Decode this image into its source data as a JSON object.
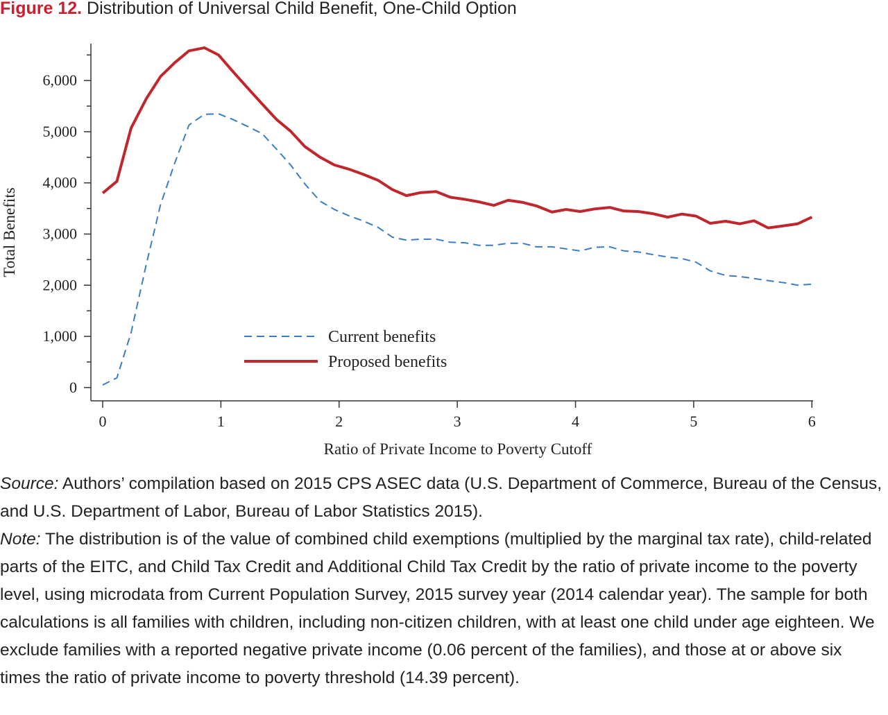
{
  "chart_data": {
    "type": "line",
    "figure_label": "Figure 12.",
    "title": "Distribution of Universal Child Benefit, One-Child Option",
    "xlabel": "Ratio of Private Income to Poverty Cutoff",
    "ylabel": "Total Benefits",
    "x": [
      0,
      0.12,
      0.24,
      0.37,
      0.49,
      0.61,
      0.73,
      0.86,
      0.98,
      1.1,
      1.22,
      1.35,
      1.47,
      1.59,
      1.71,
      1.84,
      1.96,
      2.08,
      2.2,
      2.33,
      2.45,
      2.57,
      2.69,
      2.82,
      2.94,
      3.06,
      3.18,
      3.31,
      3.43,
      3.55,
      3.67,
      3.8,
      3.92,
      4.04,
      4.16,
      4.29,
      4.41,
      4.53,
      4.65,
      4.78,
      4.9,
      5.02,
      5.14,
      5.27,
      5.39,
      5.51,
      5.63,
      5.76,
      5.88,
      6
    ],
    "series": [
      {
        "name": "Current benefits",
        "color": "#3a7dc4",
        "dashed": true,
        "values": [
          50,
          190,
          1070,
          2420,
          3580,
          4390,
          5130,
          5340,
          5350,
          5240,
          5110,
          4960,
          4660,
          4350,
          3980,
          3640,
          3480,
          3360,
          3260,
          3130,
          2940,
          2880,
          2900,
          2900,
          2840,
          2830,
          2780,
          2780,
          2820,
          2820,
          2750,
          2750,
          2710,
          2670,
          2740,
          2750,
          2670,
          2650,
          2600,
          2550,
          2520,
          2450,
          2280,
          2190,
          2170,
          2130,
          2090,
          2050,
          2000,
          2020
        ]
      },
      {
        "name": "Proposed benefits",
        "color": "#c0272d",
        "dashed": false,
        "values": [
          3800,
          4030,
          5070,
          5650,
          6080,
          6350,
          6580,
          6640,
          6500,
          6180,
          5870,
          5540,
          5240,
          5010,
          4710,
          4500,
          4350,
          4270,
          4170,
          4050,
          3870,
          3750,
          3810,
          3830,
          3720,
          3680,
          3630,
          3560,
          3660,
          3620,
          3550,
          3430,
          3480,
          3440,
          3490,
          3520,
          3450,
          3440,
          3400,
          3330,
          3390,
          3350,
          3210,
          3250,
          3200,
          3260,
          3120,
          3160,
          3200,
          3330
        ]
      }
    ],
    "xlim": [
      -0.1,
      6.01
    ],
    "xticks": [
      0,
      1,
      2,
      3,
      4,
      5,
      6
    ],
    "ylim": [
      -260,
      6720
    ],
    "yticks": [
      0,
      {
        "value": 1000,
        "label": "1,000"
      },
      {
        "value": 2000,
        "label": "2,000"
      },
      {
        "value": 3000,
        "label": "3,000"
      },
      {
        "value": 4000,
        "label": "4,000"
      },
      {
        "value": 5000,
        "label": "5,000"
      },
      {
        "value": 6000,
        "label": "6,000"
      }
    ],
    "yticks_minor": [
      500,
      1500,
      2500,
      3500,
      4500,
      5500,
      6500
    ],
    "grid": false,
    "legend_position": "lower-center"
  },
  "notes": {
    "source_label": "Source:",
    "source": "Authors’ compilation based on 2015 CPS ASEC data (U.S. Department of Commerce, Bureau of the Census, and U.S. Department of Labor, Bureau of Labor Statistics 2015).",
    "note_label": "Note:",
    "note": "The distribution is of the value of combined child exemptions (multiplied by the marginal tax rate), child-related parts of the EITC, and Child Tax Credit and Additional Child Tax Credit by the ratio of private income to the poverty level, using microdata from Current Population Survey, 2015 survey year (2014 calendar year). The sample for both calculations is all families with children, including non-citizen children, with at least one child under age eighteen. We exclude families with a reported negative private income (0.06 percent of the families), and those at or above six times the ratio of private income to poverty threshold (14.39 percent)."
  }
}
